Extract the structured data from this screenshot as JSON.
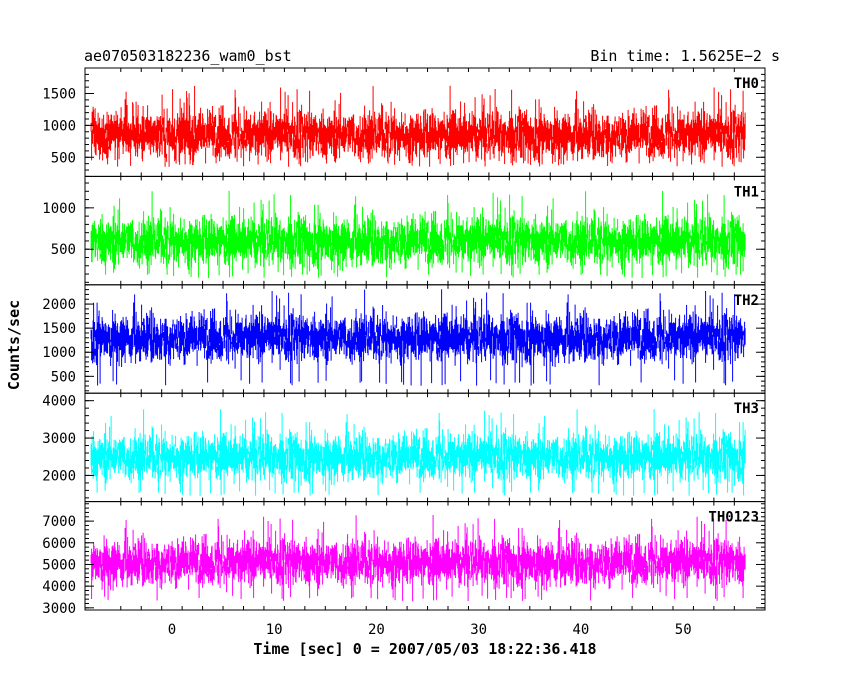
{
  "chart_data": {
    "type": "line",
    "title_left": "ae070503182236_wam0_bst",
    "title_right": "Bin time: 1.5625E−2 s",
    "xlabel": "Time [sec] 0 = 2007/05/03 18:22:36.418",
    "ylabel": "Counts/sec",
    "xlim": [
      -8.5,
      58
    ],
    "x_ticks": [
      0,
      10,
      20,
      30,
      40,
      50
    ],
    "x_data_range": [
      -7.9,
      56.1
    ],
    "series": [
      {
        "name": "TH0",
        "color": "#ff0000",
        "ylim": [
          200,
          1900
        ],
        "y_ticks": [
          500,
          1000,
          1500
        ],
        "baseline": 850,
        "noise": 230,
        "min": 350,
        "max": 1900
      },
      {
        "name": "TH1",
        "color": "#00ff00",
        "ylim": [
          70,
          1380
        ],
        "y_ticks": [
          500,
          1000
        ],
        "baseline": 600,
        "noise": 180,
        "min": 150,
        "max": 1380
      },
      {
        "name": "TH2",
        "color": "#0000ff",
        "ylim": [
          150,
          2400
        ],
        "y_ticks": [
          500,
          1000,
          1500,
          2000
        ],
        "baseline": 1300,
        "noise": 300,
        "min": 300,
        "max": 2400
      },
      {
        "name": "TH3",
        "color": "#00ffff",
        "ylim": [
          1300,
          4200
        ],
        "y_ticks": [
          2000,
          3000,
          4000
        ],
        "baseline": 2500,
        "noise": 380,
        "min": 1450,
        "max": 4150
      },
      {
        "name": "TH0123",
        "color": "#ff00ff",
        "ylim": [
          2900,
          7900
        ],
        "y_ticks": [
          3000,
          4000,
          5000,
          6000,
          7000
        ],
        "baseline": 5100,
        "noise": 650,
        "min": 3300,
        "max": 7800
      }
    ]
  }
}
